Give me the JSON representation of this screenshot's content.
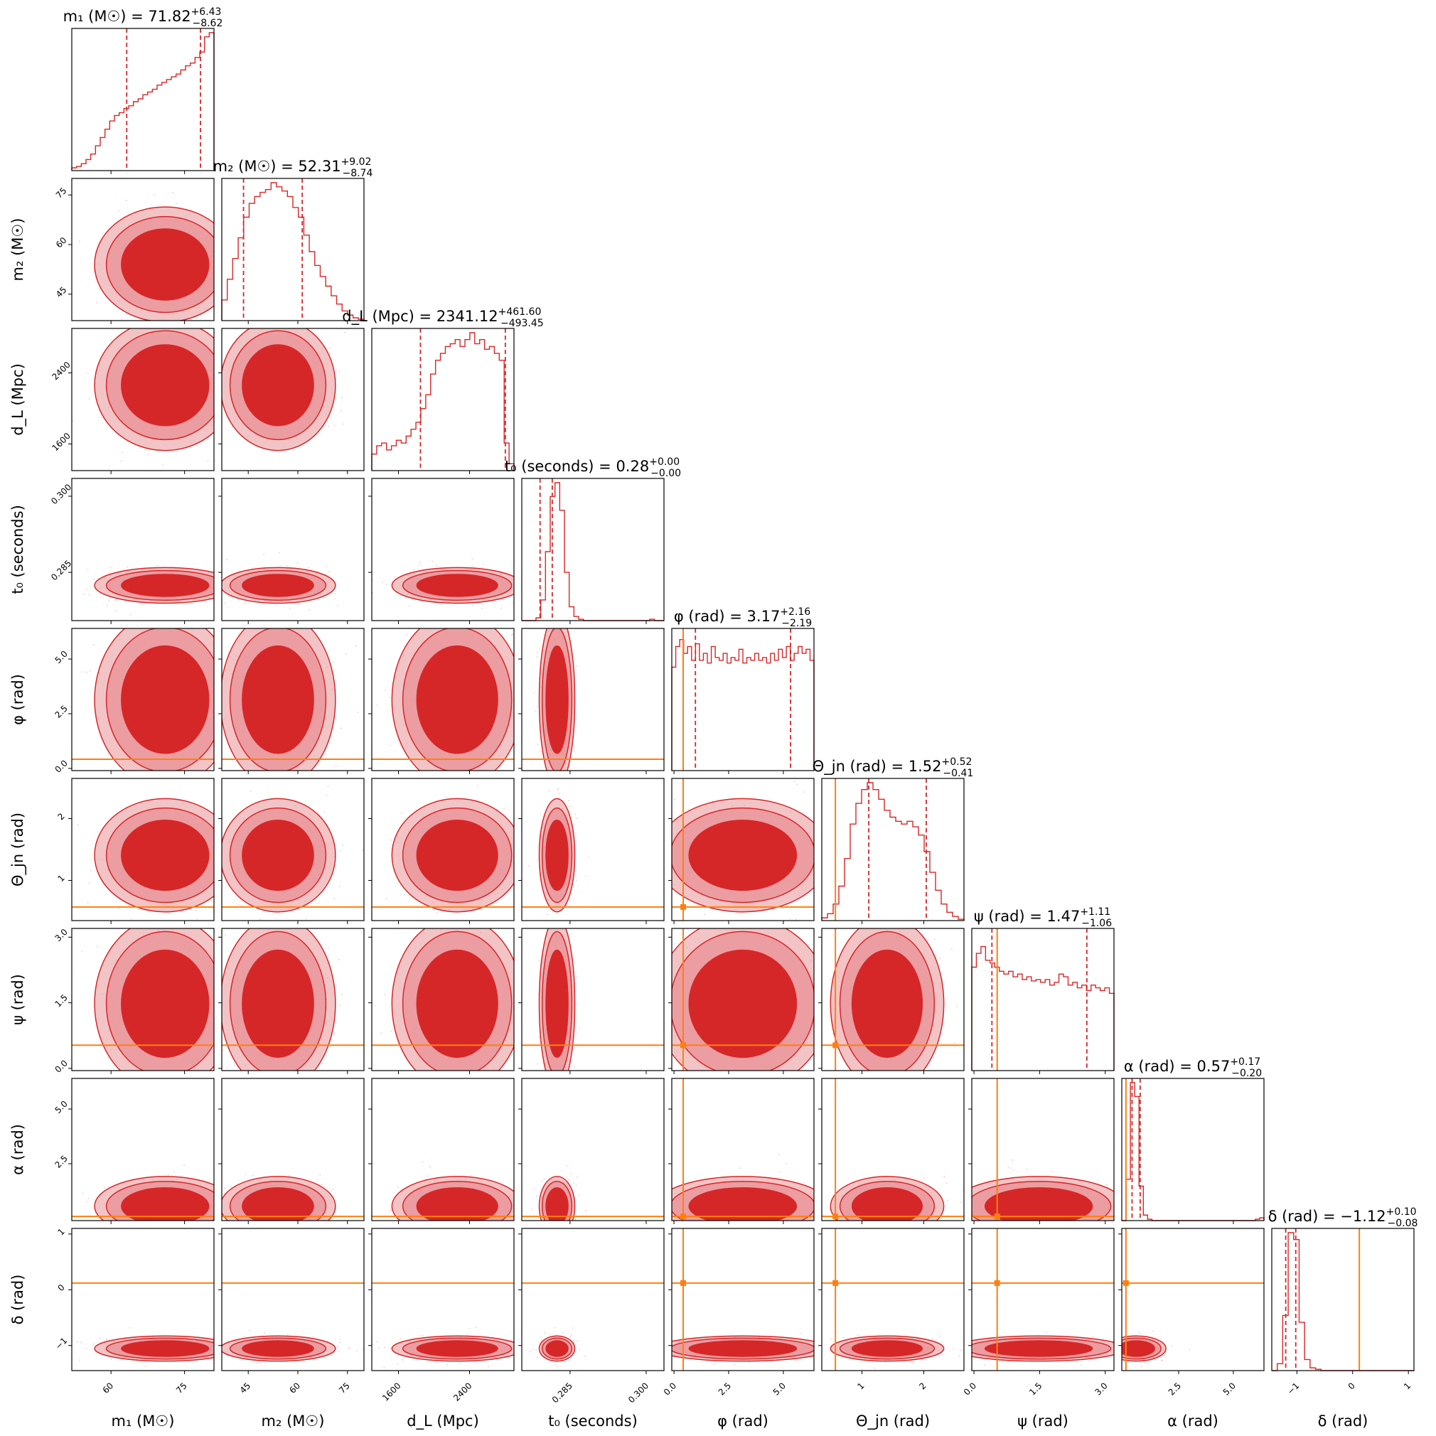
{
  "chart_data": {
    "type": "corner",
    "colors": {
      "posterior": "#d62728",
      "posterior_light": "#e89397",
      "injection": "#ff7f0e",
      "frame": "#000000"
    },
    "parameters": [
      {
        "key": "m1",
        "label": "m₁ (M☉)",
        "title": "m₁ (M☉) = 71.82 +6.43 −8.62",
        "title_value": "71.82",
        "title_plus": "+6.43",
        "title_minus": "−8.62",
        "range": [
          52,
          81
        ],
        "ticks": [
          60,
          75
        ],
        "tick_labels": [
          "60",
          "75"
        ],
        "median": 71.82,
        "lower": 63.2,
        "upper": 78.25,
        "injection": null,
        "hist": [
          0.02,
          0.03,
          0.05,
          0.08,
          0.12,
          0.18,
          0.24,
          0.3,
          0.36,
          0.4,
          0.42,
          0.45,
          0.47,
          0.5,
          0.52,
          0.55,
          0.57,
          0.59,
          0.62,
          0.64,
          0.66,
          0.68,
          0.7,
          0.73,
          0.76,
          0.78,
          0.82,
          0.86,
          0.97,
          1.0
        ]
      },
      {
        "key": "m2",
        "label": "m₂ (M☉)",
        "title": "m₂ (M☉) = 52.31 +9.02 −8.74",
        "title_value": "52.31",
        "title_plus": "+9.02",
        "title_minus": "−8.74",
        "range": [
          37,
          80
        ],
        "ticks": [
          45,
          60,
          75
        ],
        "tick_labels": [
          "45",
          "60",
          "75"
        ],
        "median": 52.31,
        "lower": 43.57,
        "upper": 61.33,
        "injection": null,
        "hist": [
          0.15,
          0.3,
          0.45,
          0.6,
          0.75,
          0.85,
          0.9,
          0.93,
          0.95,
          1.0,
          0.97,
          0.94,
          0.9,
          0.82,
          0.75,
          0.62,
          0.5,
          0.4,
          0.32,
          0.25,
          0.18,
          0.12,
          0.07,
          0.04,
          0.02,
          0.01
        ]
      },
      {
        "key": "dL",
        "label": "d_L (Mpc)",
        "title": "d_L (Mpc) = 2341.12 +461.60 −493.45",
        "title_value": "2341.12",
        "title_plus": "+461.60",
        "title_minus": "−493.45",
        "range": [
          1300,
          2900
        ],
        "ticks": [
          1600,
          2400
        ],
        "tick_labels": [
          "1600",
          "2400"
        ],
        "median": 2341.12,
        "lower": 1847.67,
        "upper": 2802.72,
        "injection": null,
        "hist": [
          0.12,
          0.18,
          0.2,
          0.15,
          0.18,
          0.22,
          0.2,
          0.25,
          0.3,
          0.35,
          0.45,
          0.55,
          0.7,
          0.8,
          0.85,
          0.9,
          0.92,
          0.95,
          0.9,
          0.95,
          1.0,
          0.92,
          0.95,
          0.88,
          0.9,
          0.85,
          0.8,
          0.2,
          0.05
        ]
      },
      {
        "key": "t0",
        "label": "t₀ (seconds)",
        "title": "t₀ (seconds) = 0.28 +0.00 −0.00",
        "title_value": "0.28",
        "title_plus": "+0.00",
        "title_minus": "−0.00",
        "range": [
          0.2755,
          0.3035
        ],
        "ticks": [
          0.285,
          0.3
        ],
        "tick_labels": [
          "0.285",
          "0.300"
        ],
        "median": 0.2797,
        "lower": 0.2791,
        "upper": 0.2815,
        "injection": null,
        "hist": [
          0,
          0,
          0,
          0.02,
          0.15,
          0.5,
          0.9,
          1.0,
          0.8,
          0.35,
          0.1,
          0.03,
          0.01,
          0,
          0,
          0,
          0,
          0,
          0,
          0,
          0,
          0,
          0,
          0,
          0,
          0,
          0,
          0.01,
          0,
          0
        ]
      },
      {
        "key": "phi",
        "label": "φ (rad)",
        "title": "φ (rad) = 3.17 +2.16 −2.19",
        "title_value": "3.17",
        "title_plus": "+2.16",
        "title_minus": "−2.19",
        "range": [
          -0.1,
          6.4
        ],
        "ticks": [
          0,
          2.5,
          5
        ],
        "tick_labels": [
          "0.0",
          "2.5",
          "5.0"
        ],
        "median": 3.17,
        "lower": 0.98,
        "upper": 5.33,
        "injection": 0.42,
        "hist": [
          0.75,
          0.9,
          0.95,
          0.85,
          0.9,
          0.8,
          0.92,
          0.8,
          0.85,
          0.78,
          0.9,
          0.82,
          0.8,
          0.85,
          0.78,
          0.82,
          0.8,
          0.88,
          0.78,
          0.82,
          0.8,
          0.85,
          0.8,
          0.82,
          0.78,
          0.85,
          0.8,
          0.88,
          0.82,
          0.9,
          0.8,
          0.85,
          0.9,
          0.85,
          0.88,
          0.8
        ]
      },
      {
        "key": "theta_jn",
        "label": "Θ_jn (rad)",
        "title": "Θ_jn (rad) = 1.52 +0.52 −0.41",
        "title_value": "1.52",
        "title_plus": "+0.52",
        "title_minus": "−0.41",
        "range": [
          0.35,
          2.65
        ],
        "ticks": [
          1,
          2
        ],
        "tick_labels": [
          "1",
          "2"
        ],
        "median": 1.52,
        "lower": 1.11,
        "upper": 2.04,
        "injection": 0.57,
        "hist": [
          0.02,
          0.05,
          0.12,
          0.25,
          0.45,
          0.7,
          0.85,
          0.95,
          1.0,
          0.95,
          0.88,
          0.8,
          0.75,
          0.72,
          0.7,
          0.72,
          0.68,
          0.62,
          0.5,
          0.35,
          0.22,
          0.12,
          0.06,
          0.03,
          0.01
        ]
      },
      {
        "key": "psi",
        "label": "ψ (rad)",
        "title": "ψ (rad) = 1.47 +1.11 −1.06",
        "title_value": "1.47",
        "title_plus": "+1.11",
        "title_minus": "−1.06",
        "range": [
          -0.05,
          3.2
        ],
        "ticks": [
          0,
          1.5,
          3
        ],
        "tick_labels": [
          "0.0",
          "1.5",
          "3.0"
        ],
        "median": 1.47,
        "lower": 0.41,
        "upper": 2.58,
        "injection": 0.53,
        "hist": [
          0.75,
          0.85,
          0.9,
          0.8,
          0.78,
          0.75,
          0.72,
          0.7,
          0.72,
          0.68,
          0.7,
          0.66,
          0.68,
          0.65,
          0.66,
          0.64,
          0.66,
          0.62,
          0.64,
          0.7,
          0.68,
          0.62,
          0.64,
          0.6,
          0.62,
          0.58,
          0.62,
          0.6,
          0.58,
          0.6,
          0.56
        ]
      },
      {
        "key": "alpha",
        "label": "α (rad)",
        "title": "α (rad) = 0.57 +0.17 −0.20",
        "title_value": "0.57",
        "title_plus": "+0.17",
        "title_minus": "−0.20",
        "range": [
          -0.1,
          6.4
        ],
        "ticks": [
          2.5,
          5
        ],
        "tick_labels": [
          "2.5",
          "5.0"
        ],
        "median": 0.57,
        "lower": 0.37,
        "upper": 0.74,
        "injection": 0.09,
        "hist": [
          0,
          0.3,
          1.0,
          0.9,
          0.25,
          0.04,
          0.01,
          0,
          0,
          0,
          0,
          0,
          0,
          0,
          0,
          0,
          0,
          0,
          0,
          0,
          0,
          0,
          0,
          0,
          0,
          0,
          0,
          0,
          0,
          0,
          0,
          0.01,
          0.02
        ]
      },
      {
        "key": "delta",
        "label": "δ (rad)",
        "title": "δ (rad) = −1.12 +0.10 −0.08",
        "title_value": "−1.12",
        "title_plus": "+0.10",
        "title_minus": "−0.08",
        "range": [
          -1.45,
          1.1
        ],
        "ticks": [
          -1,
          0,
          1
        ],
        "tick_labels": [
          "−1",
          "0",
          "1"
        ],
        "median": -1.12,
        "lower": -1.2,
        "upper": -1.02,
        "injection": 0.12,
        "hist": [
          0,
          0.05,
          0.4,
          1.0,
          0.95,
          0.35,
          0.08,
          0.02,
          0.01,
          0,
          0,
          0,
          0,
          0,
          0,
          0,
          0,
          0,
          0,
          0,
          0,
          0,
          0,
          0,
          0,
          0
        ]
      }
    ],
    "axis_labels": [
      "m₁ (M☉)",
      "m₂ (M☉)",
      "d_L (Mpc)",
      "t₀ (seconds)",
      "φ (rad)",
      "Θ_jn (rad)",
      "ψ (rad)",
      "α (rad)",
      "δ (rad)"
    ]
  }
}
